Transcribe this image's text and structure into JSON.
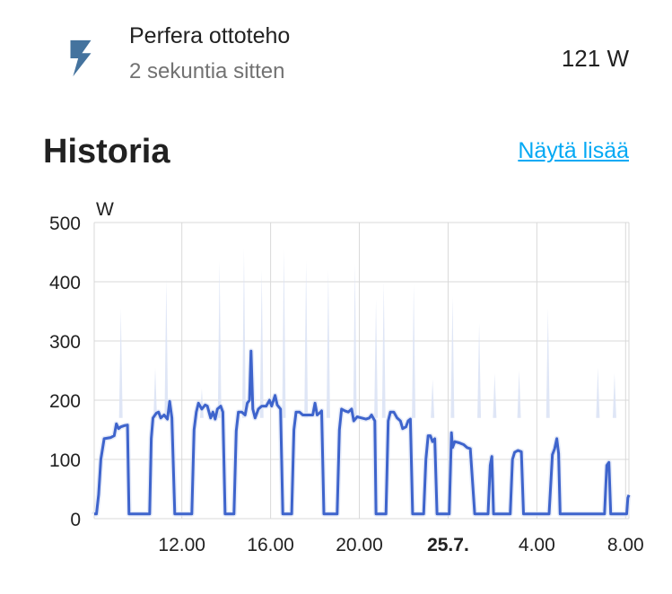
{
  "entity": {
    "name": "Perfera ottoteho",
    "secondary": "2 sekuntia sitten",
    "state": "121 W",
    "icon": "flash-icon",
    "icon_color": "#44739e"
  },
  "history": {
    "title": "Historia",
    "more_link": "Näytä lisää",
    "link_color": "#03a9f4"
  },
  "chart_data": {
    "type": "line",
    "ylabel": "W",
    "ylim": [
      0,
      500
    ],
    "y_ticks": [
      "0",
      "100",
      "200",
      "300",
      "400",
      "500"
    ],
    "x_ticks": [
      {
        "label": "12.00",
        "bold": false,
        "hour": 12
      },
      {
        "label": "16.00",
        "bold": false,
        "hour": 16
      },
      {
        "label": "20.00",
        "bold": false,
        "hour": 20
      },
      {
        "label": "25.7.",
        "bold": true,
        "hour": 24
      },
      {
        "label": "4.00",
        "bold": false,
        "hour": 28
      },
      {
        "label": "8.00",
        "bold": false,
        "hour": 32
      }
    ],
    "xlim": [
      8.05,
      32.15
    ],
    "grid": true,
    "series": [
      {
        "color": "#3e64cc",
        "fill": "#dbe3f5",
        "points": [
          [
            8.05,
            8
          ],
          [
            8.15,
            8
          ],
          [
            8.25,
            40
          ],
          [
            8.35,
            100
          ],
          [
            8.5,
            135
          ],
          [
            8.8,
            137
          ],
          [
            8.95,
            140
          ],
          [
            9.05,
            160
          ],
          [
            9.15,
            152
          ],
          [
            9.25,
            155
          ],
          [
            9.4,
            157
          ],
          [
            9.55,
            158
          ],
          [
            9.62,
            8
          ],
          [
            10.0,
            8
          ],
          [
            10.3,
            8
          ],
          [
            10.55,
            8
          ],
          [
            10.62,
            135
          ],
          [
            10.7,
            170
          ],
          [
            10.85,
            178
          ],
          [
            10.95,
            180
          ],
          [
            11.05,
            170
          ],
          [
            11.2,
            175
          ],
          [
            11.35,
            168
          ],
          [
            11.45,
            198
          ],
          [
            11.55,
            170
          ],
          [
            11.68,
            8
          ],
          [
            12.0,
            8
          ],
          [
            12.45,
            8
          ],
          [
            12.55,
            150
          ],
          [
            12.65,
            180
          ],
          [
            12.75,
            195
          ],
          [
            12.9,
            185
          ],
          [
            13.05,
            192
          ],
          [
            13.15,
            190
          ],
          [
            13.3,
            170
          ],
          [
            13.4,
            180
          ],
          [
            13.5,
            168
          ],
          [
            13.6,
            185
          ],
          [
            13.75,
            190
          ],
          [
            13.85,
            180
          ],
          [
            13.95,
            8
          ],
          [
            14.2,
            8
          ],
          [
            14.35,
            8
          ],
          [
            14.45,
            148
          ],
          [
            14.55,
            180
          ],
          [
            14.7,
            180
          ],
          [
            14.85,
            175
          ],
          [
            14.95,
            195
          ],
          [
            15.05,
            200
          ],
          [
            15.12,
            283
          ],
          [
            15.2,
            185
          ],
          [
            15.3,
            170
          ],
          [
            15.45,
            185
          ],
          [
            15.6,
            190
          ],
          [
            15.8,
            190
          ],
          [
            15.95,
            200
          ],
          [
            16.05,
            190
          ],
          [
            16.2,
            208
          ],
          [
            16.3,
            192
          ],
          [
            16.45,
            185
          ],
          [
            16.55,
            8
          ],
          [
            16.95,
            8
          ],
          [
            17.05,
            150
          ],
          [
            17.15,
            180
          ],
          [
            17.3,
            180
          ],
          [
            17.45,
            175
          ],
          [
            17.6,
            175
          ],
          [
            17.75,
            175
          ],
          [
            17.9,
            175
          ],
          [
            18.0,
            195
          ],
          [
            18.1,
            175
          ],
          [
            18.2,
            178
          ],
          [
            18.3,
            182
          ],
          [
            18.4,
            8
          ],
          [
            18.8,
            8
          ],
          [
            19.0,
            8
          ],
          [
            19.1,
            150
          ],
          [
            19.2,
            185
          ],
          [
            19.35,
            182
          ],
          [
            19.5,
            180
          ],
          [
            19.65,
            185
          ],
          [
            19.75,
            165
          ],
          [
            19.9,
            172
          ],
          [
            20.1,
            170
          ],
          [
            20.3,
            168
          ],
          [
            20.45,
            170
          ],
          [
            20.55,
            175
          ],
          [
            20.7,
            165
          ],
          [
            20.75,
            8
          ],
          [
            21.2,
            8
          ],
          [
            21.3,
            165
          ],
          [
            21.4,
            180
          ],
          [
            21.55,
            180
          ],
          [
            21.7,
            170
          ],
          [
            21.85,
            165
          ],
          [
            21.95,
            152
          ],
          [
            22.1,
            155
          ],
          [
            22.2,
            165
          ],
          [
            22.3,
            168
          ],
          [
            22.4,
            8
          ],
          [
            22.9,
            8
          ],
          [
            23.0,
            100
          ],
          [
            23.1,
            140
          ],
          [
            23.2,
            140
          ],
          [
            23.3,
            130
          ],
          [
            23.4,
            135
          ],
          [
            23.5,
            8
          ],
          [
            24.05,
            8
          ],
          [
            24.15,
            145
          ],
          [
            24.2,
            120
          ],
          [
            24.3,
            130
          ],
          [
            24.5,
            128
          ],
          [
            24.7,
            125
          ],
          [
            24.85,
            120
          ],
          [
            25.0,
            118
          ],
          [
            25.2,
            8
          ],
          [
            25.8,
            8
          ],
          [
            25.9,
            90
          ],
          [
            25.97,
            105
          ],
          [
            26.05,
            8
          ],
          [
            26.8,
            8
          ],
          [
            26.9,
            100
          ],
          [
            27.0,
            112
          ],
          [
            27.15,
            115
          ],
          [
            27.3,
            113
          ],
          [
            27.4,
            8
          ],
          [
            28.55,
            8
          ],
          [
            28.7,
            108
          ],
          [
            28.8,
            118
          ],
          [
            28.9,
            135
          ],
          [
            28.98,
            110
          ],
          [
            29.05,
            8
          ],
          [
            29.8,
            8
          ],
          [
            30.45,
            8
          ],
          [
            31.05,
            8
          ],
          [
            31.15,
            90
          ],
          [
            31.25,
            95
          ],
          [
            31.33,
            8
          ],
          [
            31.6,
            8
          ],
          [
            32.05,
            8
          ],
          [
            32.1,
            35
          ],
          [
            32.15,
            40
          ]
        ],
        "max_spikes": [
          [
            9.25,
            355
          ],
          [
            10.8,
            255
          ],
          [
            11.3,
            405
          ],
          [
            12.9,
            220
          ],
          [
            13.7,
            435
          ],
          [
            14.8,
            455
          ],
          [
            15.6,
            420
          ],
          [
            16.6,
            455
          ],
          [
            17.6,
            435
          ],
          [
            18.6,
            420
          ],
          [
            19.8,
            430
          ],
          [
            20.75,
            370
          ],
          [
            21.1,
            400
          ],
          [
            22.45,
            395
          ],
          [
            23.3,
            235
          ],
          [
            24.2,
            375
          ],
          [
            25.4,
            330
          ],
          [
            26.1,
            245
          ],
          [
            27.2,
            250
          ],
          [
            28.5,
            355
          ],
          [
            30.75,
            255
          ],
          [
            31.5,
            245
          ]
        ]
      }
    ]
  }
}
